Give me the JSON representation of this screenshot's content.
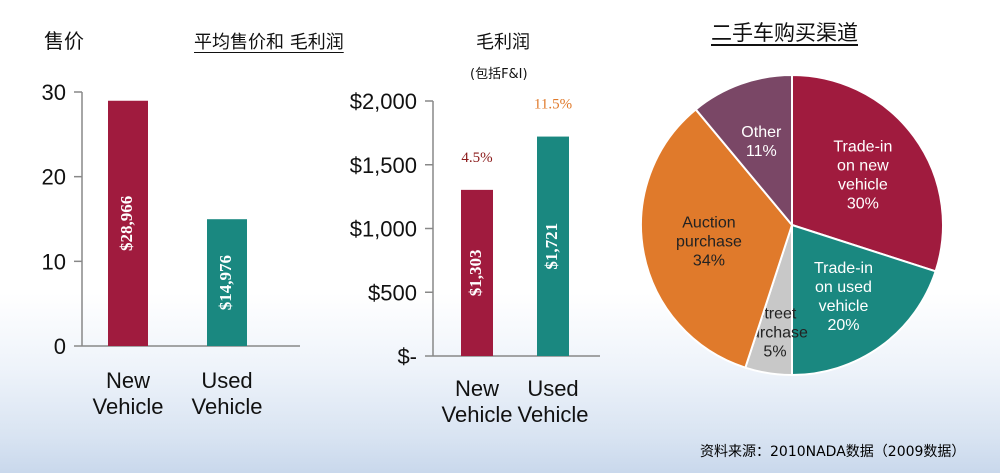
{
  "headers": {
    "price": "售价",
    "avg_title": "平均售价和 毛利润",
    "gross_profit": "毛利润",
    "incl": "(包括F&I)",
    "channels": "二手车购买渠道"
  },
  "source": "资料来源：2010NADA数据（2009数据）",
  "colors": {
    "new": "#a01b3e",
    "used": "#1a8880",
    "pie_trade_new": "#a01b3e",
    "pie_trade_used": "#1a8880",
    "pie_street": "#c8c8c8",
    "pie_auction": "#e07a2b",
    "pie_other": "#7a4766",
    "pct_new": "#8b1a1a",
    "pct_used": "#e07a2b"
  },
  "chart_data": [
    {
      "type": "bar",
      "categories": [
        "New Vehicle",
        "Used Vehicle"
      ],
      "values": [
        28.966,
        14.976
      ],
      "data_labels": [
        "$28,966",
        "$14,976"
      ],
      "yticks": [
        "0",
        "10",
        "20",
        "30"
      ],
      "ylim": [
        0,
        30
      ]
    },
    {
      "type": "bar",
      "categories": [
        "New Vehicle",
        "Used Vehicle"
      ],
      "values": [
        1303,
        1721
      ],
      "data_labels": [
        "$1,303",
        "$1,721"
      ],
      "pct_labels": [
        "4.5%",
        "11.5%"
      ],
      "yticks": [
        "$-",
        "$500",
        "$1,000",
        "$1,500",
        "$2,000"
      ],
      "ylim": [
        0,
        2000
      ]
    },
    {
      "type": "pie",
      "slices": [
        {
          "label": [
            "Trade-in",
            "on new",
            "vehicle",
            "30%"
          ],
          "value": 30,
          "color_key": "pie_trade_new",
          "text_color": "#ffffff"
        },
        {
          "label": [
            "Trade-in",
            "on used",
            "vehicle",
            "20%"
          ],
          "value": 20,
          "color_key": "pie_trade_used",
          "text_color": "#ffffff"
        },
        {
          "label": [
            "Street",
            "purchase",
            "5%"
          ],
          "value": 5,
          "color_key": "pie_street",
          "text_color": "#222222"
        },
        {
          "label": [
            "Auction",
            "purchase",
            "34%"
          ],
          "value": 34,
          "color_key": "pie_auction",
          "text_color": "#222222"
        },
        {
          "label": [
            "Other",
            "11%"
          ],
          "value": 11,
          "color_key": "pie_other",
          "text_color": "#ffffff"
        }
      ]
    }
  ]
}
